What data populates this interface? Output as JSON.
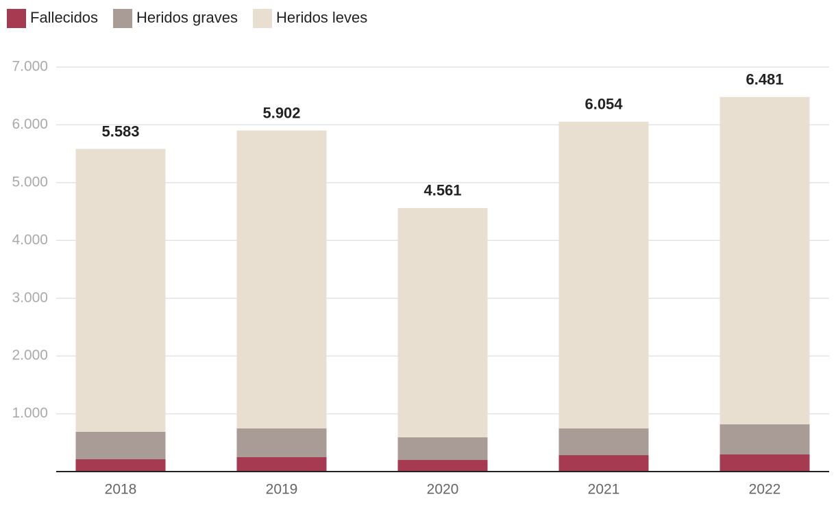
{
  "chart_data": {
    "type": "stacked_bar",
    "categories": [
      "2018",
      "2019",
      "2020",
      "2021",
      "2022"
    ],
    "series": [
      {
        "name": "Fallecidos",
        "color": "#a63a50",
        "values": [
          213,
          249,
          201,
          284,
          296
        ]
      },
      {
        "name": "Heridos graves",
        "color": "#a99c97",
        "values": [
          474,
          497,
          391,
          462,
          521
        ]
      },
      {
        "name": "Heridos leves",
        "color": "#e8dfd1",
        "values": [
          4896,
          5156,
          3969,
          5308,
          5664
        ]
      }
    ],
    "totals": [
      5583,
      5902,
      4561,
      6054,
      6481
    ],
    "total_value_labels": [
      "5.583",
      "5.902",
      "4.561",
      "6.054",
      "6.481"
    ],
    "ylim": [
      0,
      7000
    ],
    "yticks": [
      {
        "value": 1000,
        "label": "1.000"
      },
      {
        "value": 2000,
        "label": "2.000"
      },
      {
        "value": 3000,
        "label": "3.000"
      },
      {
        "value": 4000,
        "label": "4.000"
      },
      {
        "value": 5000,
        "label": "5.000"
      },
      {
        "value": 6000,
        "label": "6.000"
      },
      {
        "value": 7000,
        "label": "7.000"
      }
    ],
    "grid": true,
    "legend": "top"
  }
}
